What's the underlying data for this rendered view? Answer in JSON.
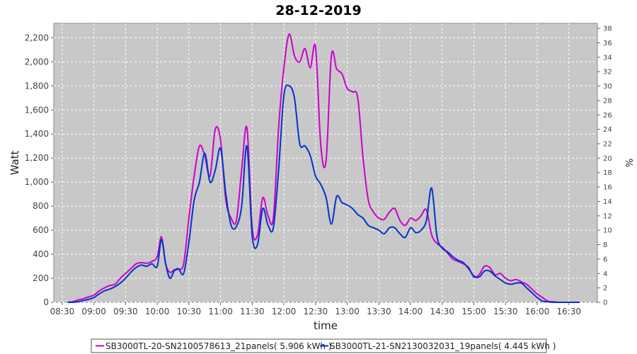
{
  "chart_data": {
    "type": "line",
    "title": "28-12-2019",
    "xlabel": "time",
    "ylabel": "Watt",
    "y2label": "%",
    "xlim": [
      "08:22",
      "16:57"
    ],
    "ylim": [
      0,
      2320
    ],
    "y2lim": [
      0,
      38.7
    ],
    "grid": true,
    "legend_position": "bottom",
    "x_ticks": [
      "08:30",
      "09:00",
      "09:30",
      "10:00",
      "10:30",
      "11:00",
      "11:30",
      "12:00",
      "12:30",
      "13:00",
      "13:30",
      "14:00",
      "14:30",
      "15:00",
      "15:30",
      "16:00",
      "16:30"
    ],
    "y_ticks": [
      0,
      200,
      400,
      600,
      800,
      1000,
      1200,
      1400,
      1600,
      1800,
      2000,
      2200
    ],
    "y_tick_labels": [
      "0",
      "200",
      "400",
      "600",
      "800",
      "1,000",
      "1,200",
      "1,400",
      "1,600",
      "1,800",
      "2,000",
      "2,200"
    ],
    "y2_ticks": [
      0,
      2,
      4,
      6,
      8,
      10,
      12,
      14,
      16,
      18,
      20,
      22,
      24,
      26,
      28,
      30,
      32,
      34,
      36,
      38
    ],
    "y2_tick_labels": [
      "0",
      "2",
      "4",
      "6",
      "8",
      "10",
      "12",
      "14",
      "16",
      "18",
      "20",
      "22",
      "24",
      "26",
      "28",
      "30",
      "32",
      "34",
      "36",
      "38"
    ],
    "colors": {
      "plot_bg": "#c8c8c8",
      "grid": "#ffffff",
      "series1": "#cc00cc",
      "series2": "#0033cc"
    },
    "series": [
      {
        "name": "SB3000TL-20-SN2100578613_21panels( 5.906 kWh )",
        "color": "#cc00cc",
        "x": [
          "08:35",
          "08:40",
          "08:45",
          "08:50",
          "08:55",
          "09:00",
          "09:05",
          "09:10",
          "09:15",
          "09:20",
          "09:25",
          "09:30",
          "09:35",
          "09:40",
          "09:45",
          "09:50",
          "09:55",
          "10:00",
          "10:04",
          "10:08",
          "10:12",
          "10:16",
          "10:20",
          "10:25",
          "10:30",
          "10:35",
          "10:40",
          "10:45",
          "10:50",
          "10:55",
          "11:00",
          "11:05",
          "11:10",
          "11:15",
          "11:20",
          "11:25",
          "11:30",
          "11:35",
          "11:40",
          "11:45",
          "11:50",
          "11:55",
          "12:00",
          "12:05",
          "12:10",
          "12:15",
          "12:20",
          "12:25",
          "12:30",
          "12:35",
          "12:40",
          "12:45",
          "12:50",
          "12:55",
          "13:00",
          "13:05",
          "13:10",
          "13:15",
          "13:20",
          "13:25",
          "13:30",
          "13:35",
          "13:40",
          "13:45",
          "13:50",
          "13:55",
          "14:00",
          "14:05",
          "14:10",
          "14:15",
          "14:20",
          "14:25",
          "14:30",
          "14:35",
          "14:40",
          "14:45",
          "14:50",
          "14:55",
          "15:00",
          "15:05",
          "15:10",
          "15:15",
          "15:20",
          "15:25",
          "15:30",
          "15:35",
          "15:40",
          "15:45",
          "15:50",
          "15:55",
          "16:00",
          "16:05",
          "16:10",
          "16:15",
          "16:20",
          "16:25",
          "16:30",
          "16:35",
          "16:40"
        ],
        "values": [
          0,
          5,
          20,
          30,
          45,
          60,
          95,
          120,
          140,
          150,
          200,
          240,
          280,
          320,
          330,
          325,
          340,
          380,
          545,
          320,
          250,
          270,
          275,
          320,
          700,
          1050,
          1300,
          1220,
          1050,
          1440,
          1350,
          850,
          700,
          680,
          1100,
          1450,
          620,
          560,
          870,
          720,
          700,
          1450,
          1950,
          2230,
          2050,
          2000,
          2110,
          1950,
          2120,
          1300,
          1180,
          2050,
          1940,
          1900,
          1780,
          1750,
          1700,
          1200,
          850,
          750,
          700,
          690,
          750,
          780,
          680,
          640,
          700,
          680,
          720,
          770,
          560,
          490,
          460,
          410,
          360,
          340,
          320,
          290,
          210,
          230,
          300,
          290,
          230,
          240,
          200,
          180,
          190,
          170,
          150,
          110,
          70,
          40,
          10,
          5,
          0,
          0,
          0,
          0,
          0
        ]
      },
      {
        "name": "SB3000TL-21-SN2130032031_19panels( 4.445 kWh )",
        "color": "#0033cc",
        "x": [
          "08:35",
          "08:40",
          "08:45",
          "08:50",
          "08:55",
          "09:00",
          "09:05",
          "09:10",
          "09:15",
          "09:20",
          "09:25",
          "09:30",
          "09:35",
          "09:40",
          "09:45",
          "09:50",
          "09:55",
          "10:00",
          "10:04",
          "10:08",
          "10:12",
          "10:16",
          "10:20",
          "10:25",
          "10:30",
          "10:35",
          "10:40",
          "10:45",
          "10:50",
          "10:55",
          "11:00",
          "11:05",
          "11:10",
          "11:15",
          "11:20",
          "11:25",
          "11:30",
          "11:35",
          "11:40",
          "11:45",
          "11:50",
          "11:55",
          "12:00",
          "12:05",
          "12:10",
          "12:15",
          "12:20",
          "12:25",
          "12:30",
          "12:35",
          "12:40",
          "12:45",
          "12:50",
          "12:55",
          "13:00",
          "13:05",
          "13:10",
          "13:15",
          "13:20",
          "13:25",
          "13:30",
          "13:35",
          "13:40",
          "13:45",
          "13:50",
          "13:55",
          "14:00",
          "14:05",
          "14:10",
          "14:15",
          "14:20",
          "14:25",
          "14:30",
          "14:35",
          "14:40",
          "14:45",
          "14:50",
          "14:55",
          "15:00",
          "15:05",
          "15:10",
          "15:15",
          "15:20",
          "15:25",
          "15:30",
          "15:35",
          "15:40",
          "15:45",
          "15:50",
          "15:55",
          "16:00",
          "16:05",
          "16:10",
          "16:15",
          "16:20",
          "16:25",
          "16:30",
          "16:35",
          "16:40"
        ],
        "values": [
          0,
          0,
          5,
          15,
          25,
          40,
          70,
          95,
          110,
          130,
          160,
          200,
          250,
          290,
          310,
          300,
          320,
          300,
          520,
          320,
          200,
          260,
          280,
          240,
          500,
          850,
          1000,
          1240,
          1000,
          1100,
          1280,
          900,
          640,
          630,
          800,
          1300,
          550,
          480,
          780,
          640,
          620,
          1100,
          1720,
          1800,
          1700,
          1320,
          1300,
          1220,
          1050,
          980,
          870,
          650,
          880,
          830,
          810,
          780,
          730,
          700,
          640,
          620,
          600,
          570,
          620,
          620,
          570,
          540,
          620,
          580,
          600,
          680,
          950,
          550,
          450,
          420,
          380,
          350,
          330,
          280,
          220,
          210,
          260,
          260,
          220,
          190,
          160,
          150,
          160,
          160,
          120,
          80,
          40,
          10,
          5,
          0,
          0,
          0,
          0,
          0,
          0
        ]
      }
    ]
  }
}
